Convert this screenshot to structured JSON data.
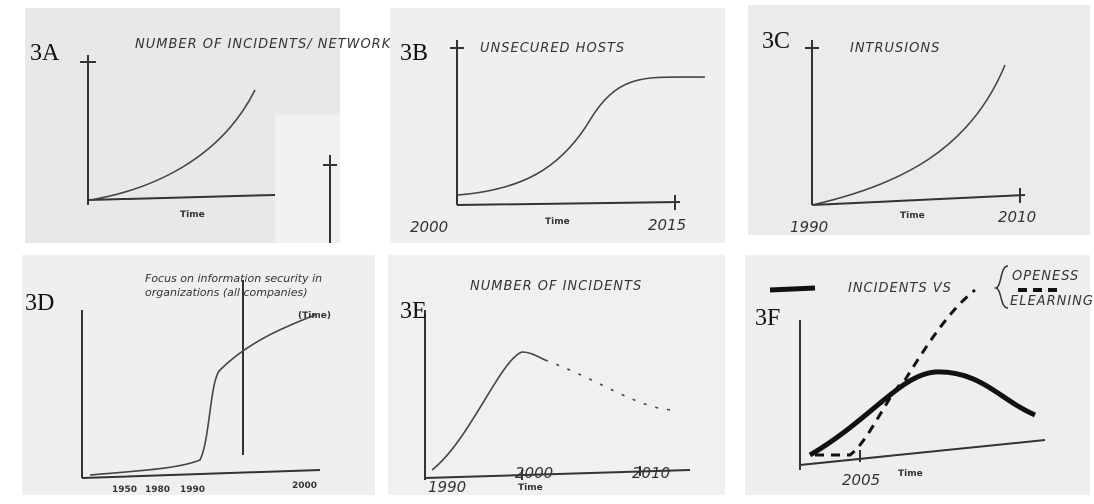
{
  "panels": [
    {
      "label": "3A",
      "title": "NUMBER OF INCIDENTS/ NETWORK",
      "texts": [
        "Time"
      ]
    },
    {
      "label": "3B",
      "title": "UNSECURED HOSTS",
      "texts": [
        "2000",
        "Time",
        "2015"
      ]
    },
    {
      "label": "3C",
      "title": "INTRUSIONS",
      "texts": [
        "1990",
        "Time",
        "2010"
      ]
    },
    {
      "label": "3D",
      "title": "Focus on information security in organizations (all companies)",
      "texts": [
        "1950",
        "1980",
        "1990",
        "2000",
        "(Time)"
      ]
    },
    {
      "label": "3E",
      "title": "NUMBER OF INCIDENTS",
      "texts": [
        "1990",
        "2000",
        "Time",
        "2010"
      ]
    },
    {
      "label": "3F",
      "title": "INCIDENTS VS",
      "texts": [
        "OPENESS",
        "ELEARNING",
        "2005",
        "Time"
      ]
    }
  ]
}
